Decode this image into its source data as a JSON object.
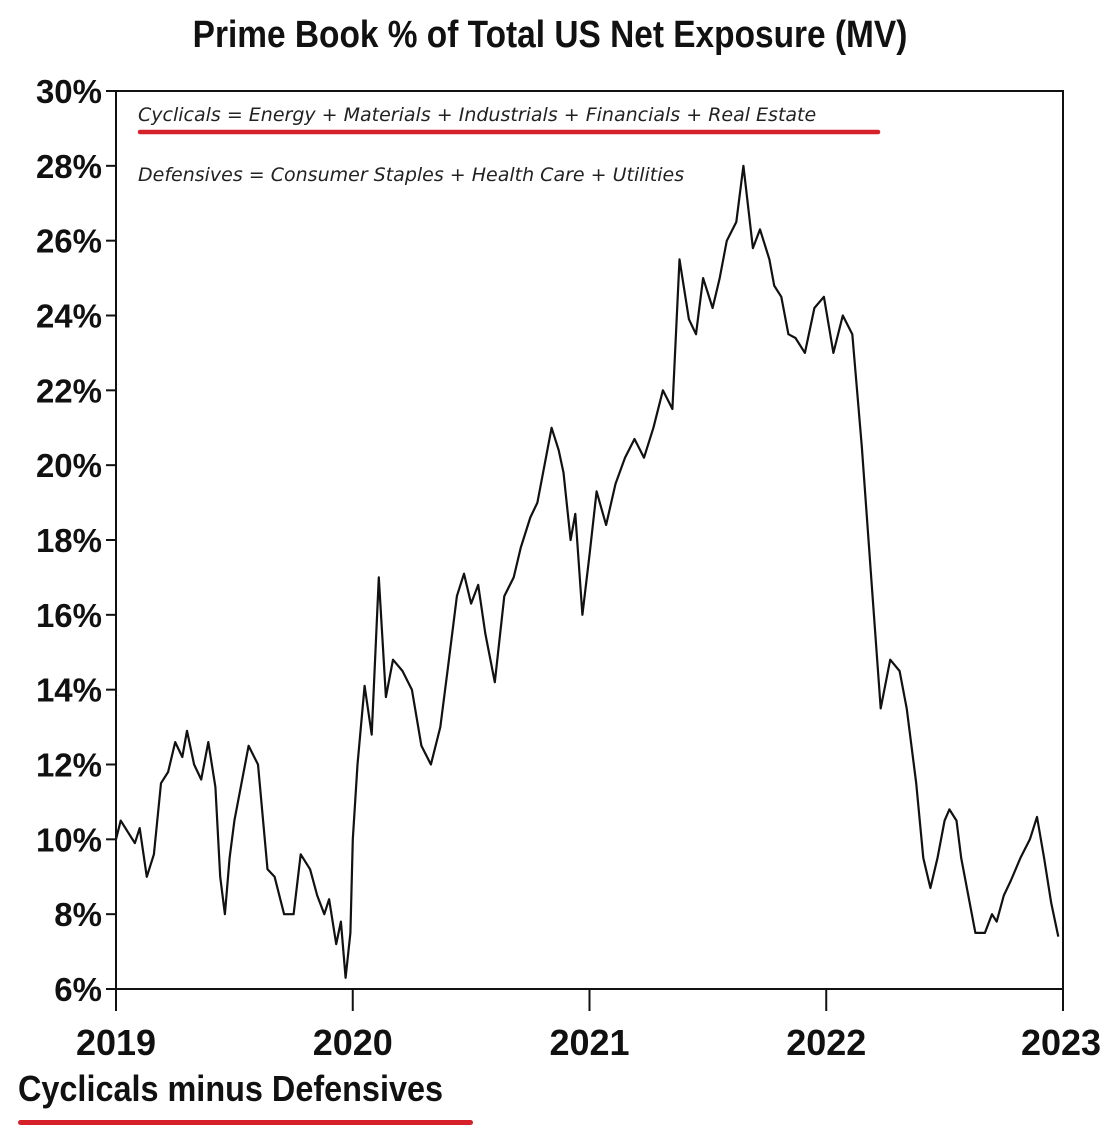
{
  "chart_data": {
    "type": "line",
    "title": "Prime Book % of Total US Net Exposure (MV)",
    "series_label": "Cyclicals minus Defensives",
    "annotations": [
      "Cyclicals = Energy + Materials + Industrials + Financials + Real Estate",
      "Defensives = Consumer Staples + Health Care + Utilities"
    ],
    "y_tick_labels": [
      "6%",
      "8%",
      "10%",
      "12%",
      "14%",
      "16%",
      "18%",
      "20%",
      "22%",
      "24%",
      "26%",
      "28%",
      "30%"
    ],
    "x_tick_labels": [
      "2019",
      "2020",
      "2021",
      "2022",
      "2023"
    ],
    "ylim": [
      6,
      30
    ],
    "xlim": [
      2019,
      2023
    ],
    "y_unit": "%",
    "grid": false,
    "colors": {
      "line": "#111111",
      "highlight": "#d6202a"
    },
    "series": [
      {
        "x": [
          2019.0,
          2019.02,
          2019.05,
          2019.08,
          2019.1,
          2019.13,
          2019.16,
          2019.19,
          2019.22,
          2019.25,
          2019.28,
          2019.3,
          2019.33,
          2019.36,
          2019.39,
          2019.42,
          2019.44,
          2019.46,
          2019.48,
          2019.5,
          2019.53,
          2019.56,
          2019.6,
          2019.64,
          2019.67,
          2019.71,
          2019.75,
          2019.78,
          2019.82,
          2019.85,
          2019.88,
          2019.9,
          2019.93,
          2019.95,
          2019.97,
          2019.99,
          2020.0,
          2020.02,
          2020.05,
          2020.08,
          2020.11,
          2020.14,
          2020.17,
          2020.21,
          2020.25,
          2020.29,
          2020.33,
          2020.37,
          2020.4,
          2020.44,
          2020.47,
          2020.5,
          2020.53,
          2020.56,
          2020.6,
          2020.64,
          2020.68,
          2020.71,
          2020.75,
          2020.78,
          2020.81,
          2020.84,
          2020.87,
          2020.89,
          2020.92,
          2020.94,
          2020.97,
          2021.0,
          2021.03,
          2021.07,
          2021.11,
          2021.15,
          2021.19,
          2021.23,
          2021.27,
          2021.31,
          2021.35,
          2021.38,
          2021.42,
          2021.45,
          2021.48,
          2021.52,
          2021.55,
          2021.58,
          2021.62,
          2021.65,
          2021.69,
          2021.72,
          2021.76,
          2021.78,
          2021.81,
          2021.84,
          2021.87,
          2021.91,
          2021.95,
          2021.99,
          2022.03,
          2022.07,
          2022.11,
          2022.15,
          2022.19,
          2022.23,
          2022.27,
          2022.31,
          2022.34,
          2022.38,
          2022.41,
          2022.44,
          2022.47,
          2022.5,
          2022.52,
          2022.55,
          2022.57,
          2022.6,
          2022.63,
          2022.67,
          2022.7,
          2022.72,
          2022.75,
          2022.78,
          2022.82,
          2022.86,
          2022.89,
          2022.92,
          2022.95,
          2022.98
        ],
        "y": [
          10.0,
          10.5,
          10.2,
          9.9,
          10.3,
          9.0,
          9.6,
          11.5,
          11.8,
          12.6,
          12.2,
          12.9,
          12.0,
          11.6,
          12.6,
          11.4,
          9.0,
          8.0,
          9.5,
          10.5,
          11.5,
          12.5,
          12.0,
          9.2,
          9.0,
          8.0,
          8.0,
          9.6,
          9.2,
          8.5,
          8.0,
          8.4,
          7.2,
          7.8,
          6.3,
          7.5,
          10.0,
          12.0,
          14.1,
          12.8,
          17.0,
          13.8,
          14.8,
          14.5,
          14.0,
          12.5,
          12.0,
          13.0,
          14.5,
          16.5,
          17.1,
          16.3,
          16.8,
          15.5,
          14.2,
          16.5,
          17.0,
          17.8,
          18.6,
          19.0,
          20.0,
          21.0,
          20.4,
          19.8,
          18.0,
          18.7,
          16.0,
          17.6,
          19.3,
          18.4,
          19.5,
          20.2,
          20.7,
          20.2,
          21.0,
          22.0,
          21.5,
          25.5,
          23.9,
          23.5,
          25.0,
          24.2,
          25.0,
          26.0,
          26.5,
          28.0,
          25.8,
          26.3,
          25.5,
          24.8,
          24.5,
          23.5,
          23.4,
          23.0,
          24.2,
          24.5,
          23.0,
          24.0,
          23.5,
          20.5,
          17.0,
          13.5,
          14.8,
          14.5,
          13.5,
          11.5,
          9.5,
          8.7,
          9.5,
          10.5,
          10.8,
          10.5,
          9.5,
          8.5,
          7.5,
          7.5,
          8.0,
          7.8,
          8.5,
          8.9,
          9.5,
          10.0,
          10.6,
          9.5,
          8.3,
          7.4
        ]
      }
    ]
  }
}
